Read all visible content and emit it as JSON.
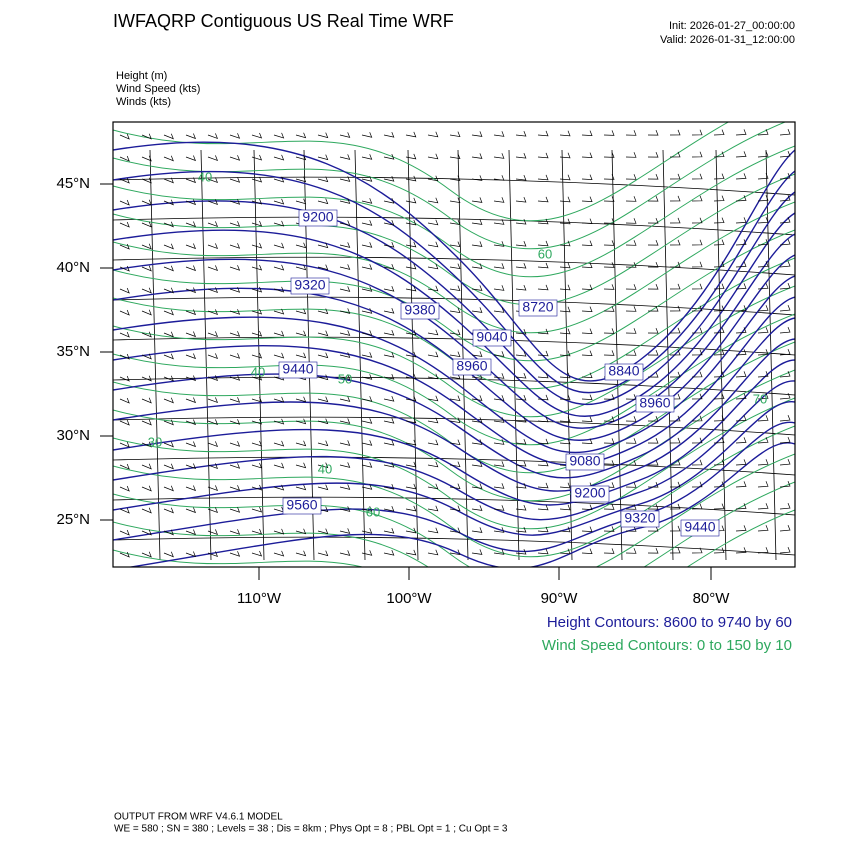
{
  "header": {
    "title": "IWFAQRP Contiguous US Real Time WRF",
    "init": "Init: 2026-01-27_00:00:00",
    "valid": "Valid: 2026-01-31_12:00:00"
  },
  "fields": [
    "Height   (m)",
    "Wind Speed   (kts)",
    "Winds   (kts)"
  ],
  "map": {
    "lat_labels": [
      "45°N",
      "40°N",
      "35°N",
      "30°N",
      "25°N"
    ],
    "lon_labels": [
      "110°W",
      "100°W",
      "90°W",
      "80°W"
    ],
    "height_labels": [
      "9200",
      "9320",
      "9380",
      "8720",
      "9040",
      "8960",
      "9440",
      "8840",
      "8960",
      "9080",
      "9200",
      "9560",
      "9320",
      "9440"
    ],
    "speed_labels": [
      "40",
      "40",
      "30",
      "40",
      "60",
      "50",
      "60",
      "70"
    ]
  },
  "legend": {
    "height": "Height Contours: 8600 to 9740 by 60",
    "speed": "Wind Speed Contours: 0 to 150 by 10"
  },
  "footer": {
    "model": "OUTPUT FROM WRF V4.6.1 MODEL",
    "settings": "WE = 580 ; SN = 380 ; Levels = 38 ; Dis = 8km ; Phys Opt = 8 ; PBL Opt = 1 ; Cu Opt = 3"
  }
}
